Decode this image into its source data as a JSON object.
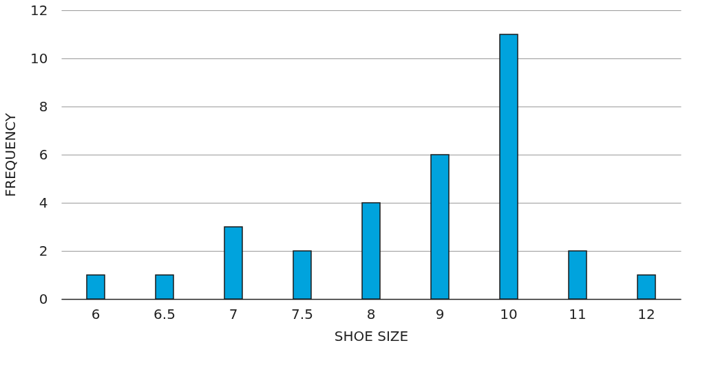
{
  "chart_data": {
    "type": "bar",
    "xlabel": "SHOE SIZE",
    "ylabel": "FREQUENCY",
    "categories": [
      "6",
      "6.5",
      "7",
      "7.5",
      "8",
      "9",
      "10",
      "11",
      "12"
    ],
    "values": [
      1,
      1,
      3,
      2,
      4,
      6,
      11,
      2,
      1
    ],
    "color": "#00a3dd",
    "ylim": [
      0,
      12
    ],
    "yticks": [
      0,
      2,
      4,
      6,
      8,
      10,
      12
    ],
    "grid": "y"
  }
}
